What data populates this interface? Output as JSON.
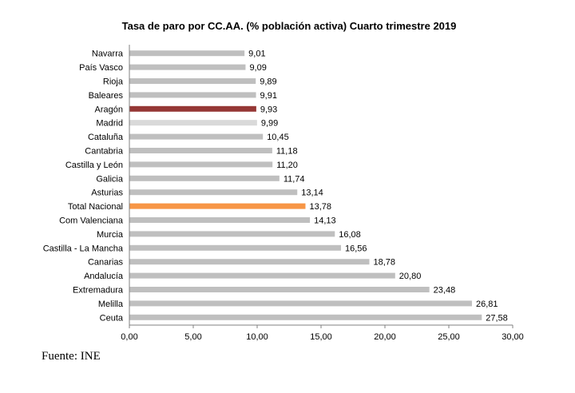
{
  "chart_data": {
    "type": "bar",
    "orientation": "horizontal",
    "title": "Tasa de paro por CC.AA. (% población activa) Cuarto trimestre 2019",
    "categories": [
      "Navarra",
      "País Vasco",
      "Rioja",
      "Baleares",
      "Aragón",
      "Madrid",
      "Cataluña",
      "Cantabria",
      "Castilla y León",
      "Galicia",
      "Asturias",
      "Total Nacional",
      "Com Valenciana",
      "Murcia",
      "Castilla - La Mancha",
      "Canarias",
      "Andalucía",
      "Extremadura",
      "Melilla",
      "Ceuta"
    ],
    "values": [
      9.01,
      9.09,
      9.89,
      9.91,
      9.93,
      9.99,
      10.45,
      11.18,
      11.2,
      11.74,
      13.14,
      13.78,
      14.13,
      16.08,
      16.56,
      18.78,
      20.8,
      23.48,
      26.81,
      27.58
    ],
    "value_labels": [
      "9,01",
      "9,09",
      "9,89",
      "9,91",
      "9,93",
      "9,99",
      "10,45",
      "11,18",
      "11,20",
      "11,74",
      "13,14",
      "13,78",
      "14,13",
      "16,08",
      "16,56",
      "18,78",
      "20,80",
      "23,48",
      "26,81",
      "27,58"
    ],
    "colors": [
      "#bfbfbf",
      "#bfbfbf",
      "#bfbfbf",
      "#bfbfbf",
      "#953735",
      "#d9d9d9",
      "#bfbfbf",
      "#bfbfbf",
      "#bfbfbf",
      "#bfbfbf",
      "#bfbfbf",
      "#f79646",
      "#bfbfbf",
      "#bfbfbf",
      "#bfbfbf",
      "#bfbfbf",
      "#bfbfbf",
      "#bfbfbf",
      "#bfbfbf",
      "#bfbfbf"
    ],
    "xlim": [
      0,
      30
    ],
    "xticks": [
      0,
      5,
      10,
      15,
      20,
      25,
      30
    ],
    "xtick_labels": [
      "0,00",
      "5,00",
      "10,00",
      "15,00",
      "20,00",
      "25,00",
      "30,00"
    ],
    "grid": false,
    "legend": "none"
  },
  "source_text": "Fuente: INE"
}
